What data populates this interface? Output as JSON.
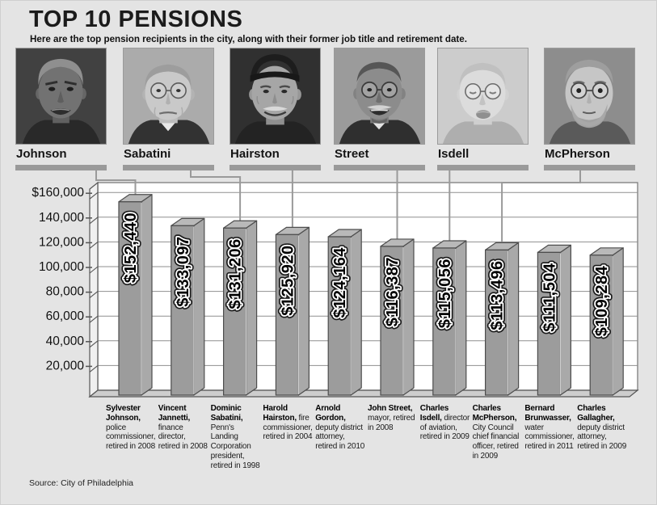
{
  "header": {
    "title": "TOP 10 PENSIONS",
    "subtitle": "Here are the top pension recipients in the city, along with their former job title and retirement date."
  },
  "photos": [
    {
      "caption": "Johnson",
      "bar_rank": 1
    },
    {
      "caption": "Sabatini",
      "bar_rank": 3
    },
    {
      "caption": "Hairston",
      "bar_rank": 4
    },
    {
      "caption": "Street",
      "bar_rank": 6
    },
    {
      "caption": "Isdell",
      "bar_rank": 7
    },
    {
      "caption": "McPherson",
      "bar_rank": 8
    }
  ],
  "chart_data": {
    "type": "bar",
    "title": "TOP 10 PENSIONS",
    "xlabel": "",
    "ylabel": "",
    "ylim": [
      0,
      165000
    ],
    "grid": "horizontal",
    "legend": "none",
    "ytick_values": [
      160000,
      140000,
      120000,
      100000,
      80000,
      60000,
      40000,
      20000
    ],
    "ytick_labels": [
      "$160,000",
      "140,000",
      "120,000",
      "100,000",
      "80,000",
      "60,000",
      "40,000",
      "20,000"
    ],
    "bars": [
      {
        "value": 152440,
        "value_label": "$152,440",
        "name": "Sylvester Johnson,",
        "description": "police commissioner, retired in 2008"
      },
      {
        "value": 133097,
        "value_label": "$133,097",
        "name": "Vincent Jannetti,",
        "description": "finance director, retired in 2008"
      },
      {
        "value": 131206,
        "value_label": "$131,206",
        "name": "Dominic Sabatini,",
        "description": "Penn's Landing Corporation president, retired in 1998"
      },
      {
        "value": 125920,
        "value_label": "$125,920",
        "name": "Harold Hairston,",
        "description": "fire commissioner, retired in 2004"
      },
      {
        "value": 124164,
        "value_label": "$124,164",
        "name": "Arnold Gordon,",
        "description": "deputy district attorney, retired in 2010"
      },
      {
        "value": 116387,
        "value_label": "$116,387",
        "name": "John Street,",
        "description": "mayor, retired in 2008"
      },
      {
        "value": 115056,
        "value_label": "$115,056",
        "name": "Charles Isdell,",
        "description": "director of aviation, retired in 2009"
      },
      {
        "value": 113496,
        "value_label": "$113,496",
        "name": "Charles McPherson,",
        "description": "City Council chief financial officer, retired in 2009"
      },
      {
        "value": 111504,
        "value_label": "$111,504",
        "name": "Bernard Brunwasser,",
        "description": "water commissioner, retired in 2011"
      },
      {
        "value": 109284,
        "value_label": "$109,284",
        "name": "Charles Gallagher,",
        "description": "deputy district attorney, retired in 2009"
      }
    ]
  },
  "colors": {
    "background": "#e4e4e4",
    "plot_bg": "#ffffff",
    "bar_front": "#9c9c9c",
    "bar_side": "#a9a9a9",
    "bar_top": "#b9b9b9",
    "bar_outline": "#4d4d4d",
    "gridline": "#8f8f8f",
    "connector": "#9a9a9a",
    "floor": "#cdcdcd",
    "wall": "#f0f0f0",
    "axis": "#555555",
    "text": "#111111"
  },
  "source": "Source: City of Philadelphia"
}
